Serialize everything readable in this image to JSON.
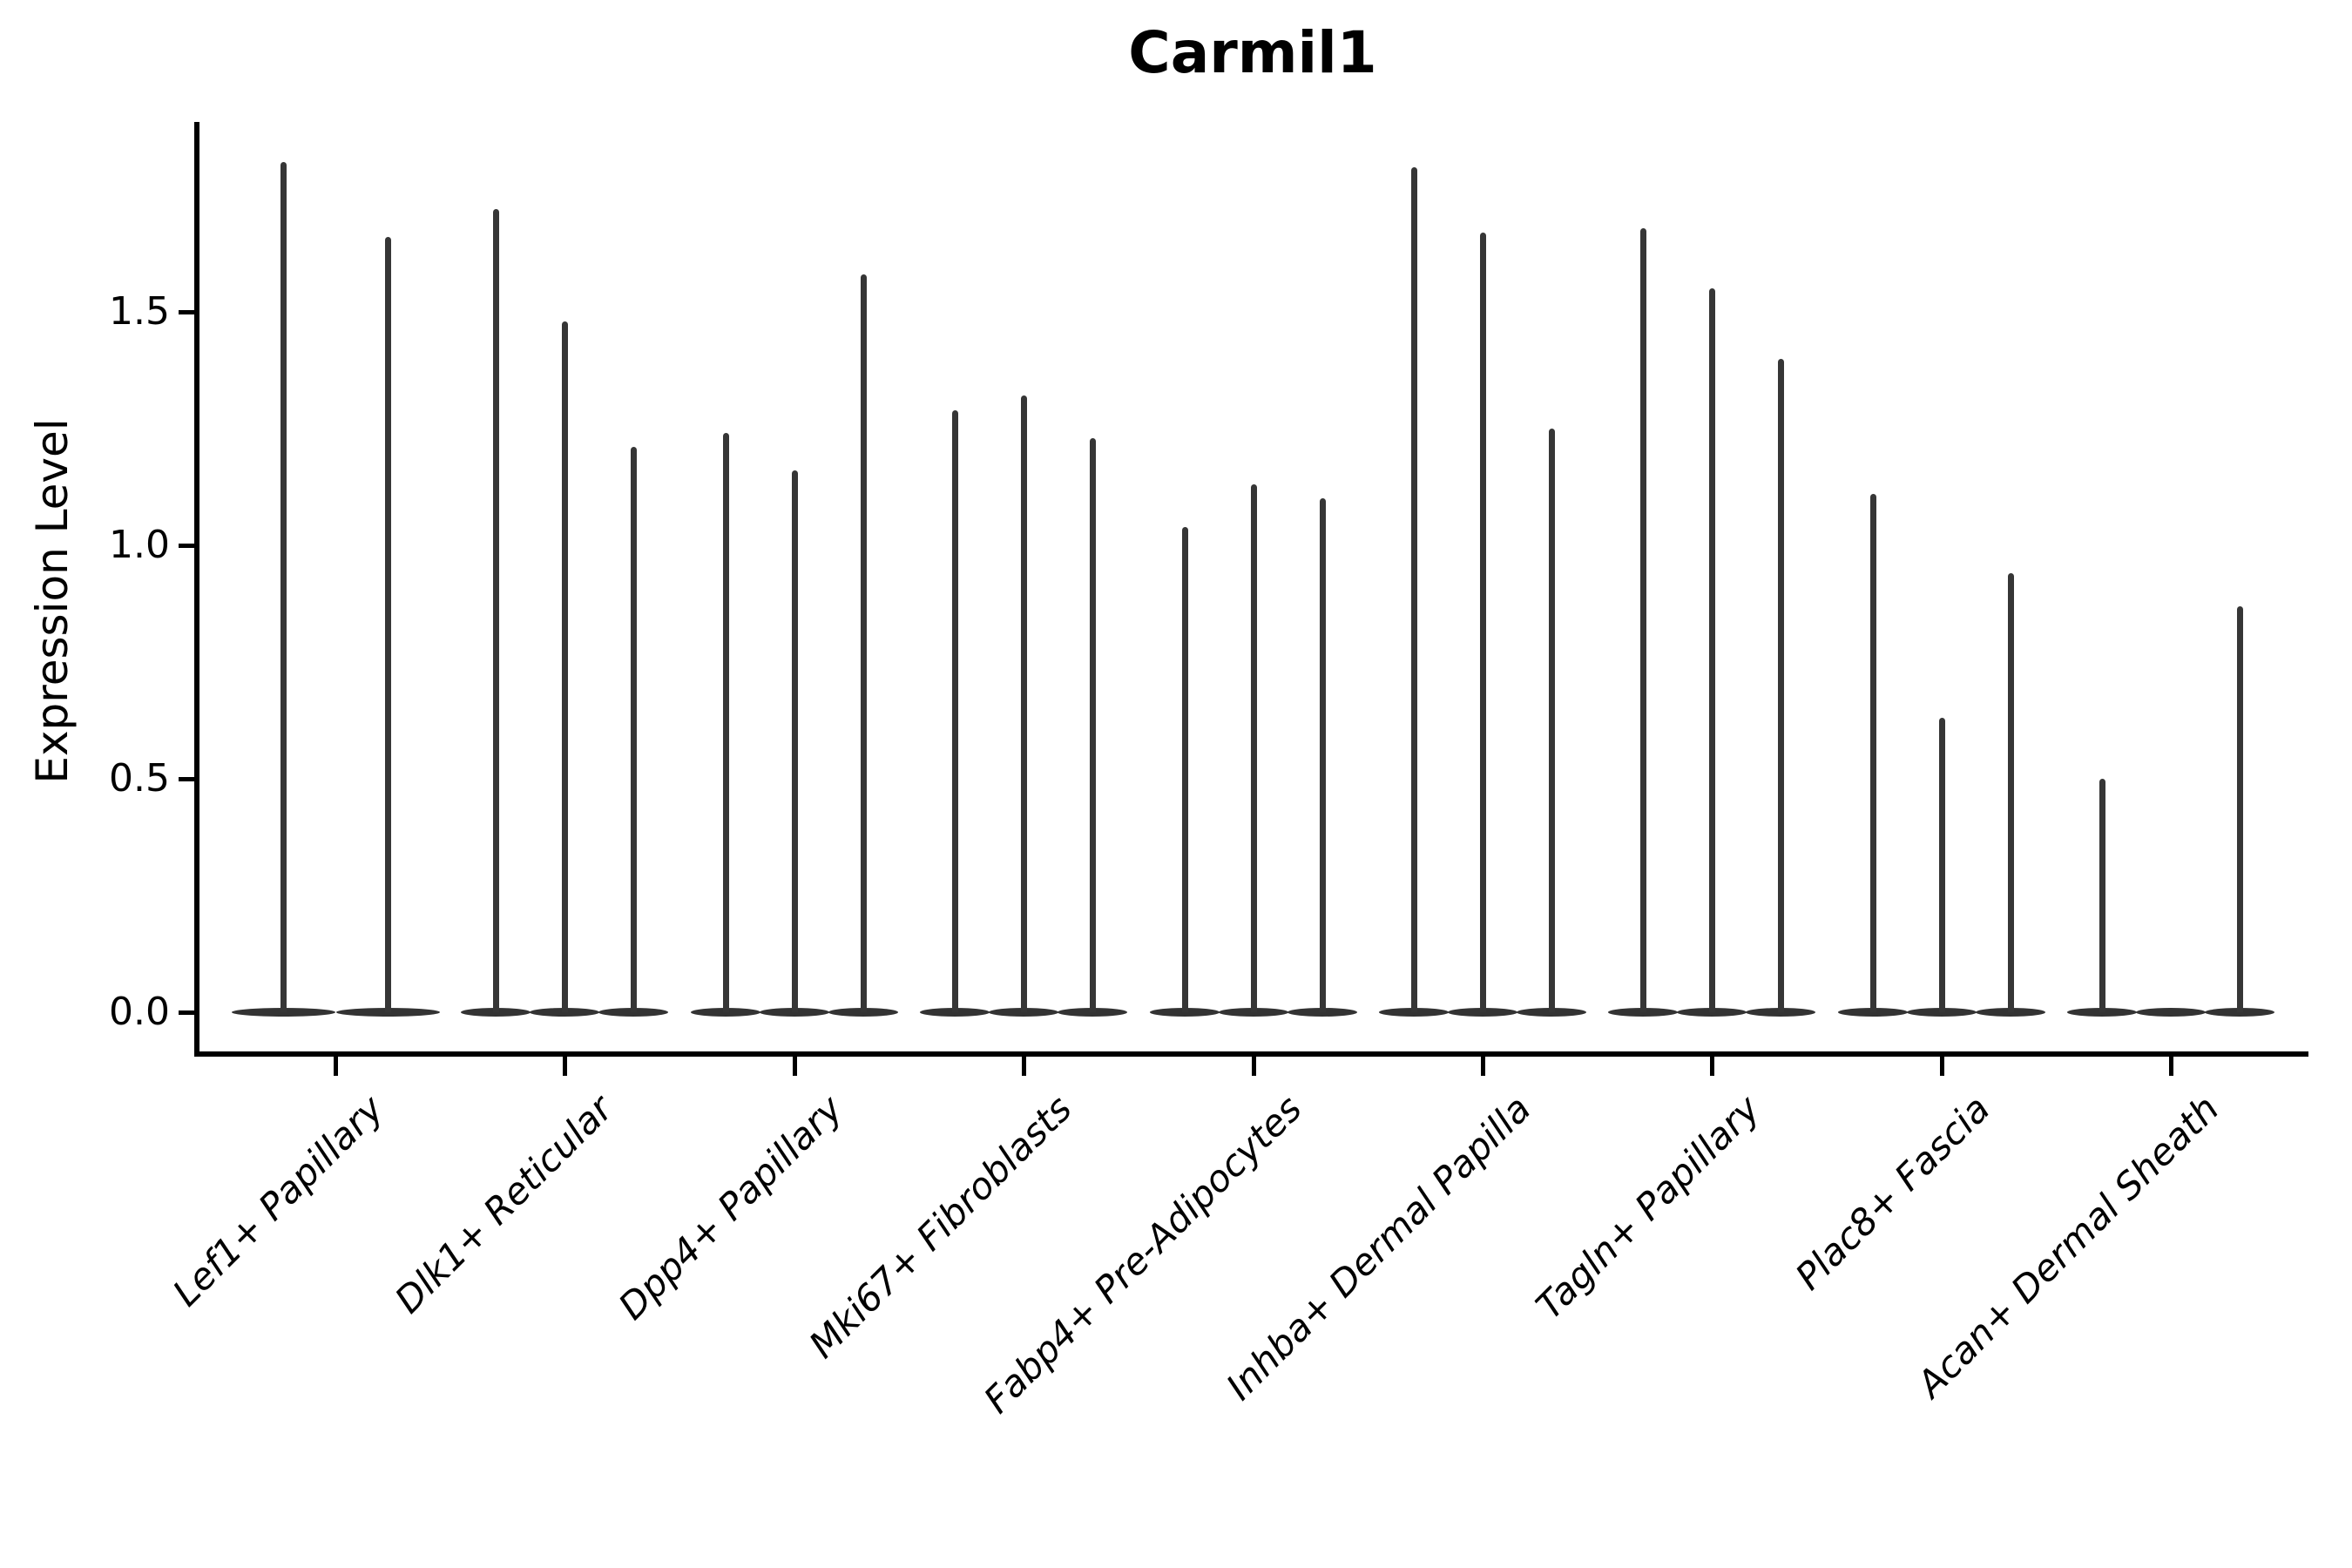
{
  "chart_data": {
    "type": "violin",
    "title": "Carmil1",
    "ylabel": "Expression Level",
    "xlabel": "",
    "yticks": [
      0.0,
      0.5,
      1.0,
      1.5
    ],
    "ylim": [
      0,
      1.9
    ],
    "grid": false,
    "legend": "none",
    "categories": [
      "Lef1+ Papillary",
      "Dlk1+ Reticular",
      "Dpp4+ Papillary",
      "Mki67+ Fibroblasts",
      "Fabp4+ Pre-Adipocytes",
      "Inhba+ Dermal Papilla",
      "Tagln+ Papillary",
      "Plac8+ Fascia",
      "Acan+ Dermal Sheath"
    ],
    "series": [
      {
        "category": "Lef1+ Papillary",
        "violin_max_values": [
          1.82,
          1.66
        ]
      },
      {
        "category": "Dlk1+ Reticular",
        "violin_max_values": [
          1.72,
          1.48,
          1.21
        ]
      },
      {
        "category": "Dpp4+ Papillary",
        "violin_max_values": [
          1.24,
          1.16,
          1.58
        ]
      },
      {
        "category": "Mki67+ Fibroblasts",
        "violin_max_values": [
          1.29,
          1.32,
          1.23
        ]
      },
      {
        "category": "Fabp4+ Pre-Adipocytes",
        "violin_max_values": [
          1.04,
          1.13,
          1.1
        ]
      },
      {
        "category": "Inhba+ Dermal Papilla",
        "violin_max_values": [
          1.81,
          1.67,
          1.25
        ]
      },
      {
        "category": "Tagln+ Papillary",
        "violin_max_values": [
          1.68,
          1.55,
          1.4
        ]
      },
      {
        "category": "Plac8+ Fascia",
        "violin_max_values": [
          1.11,
          0.63,
          0.94
        ]
      },
      {
        "category": "Acan+ Dermal Sheath",
        "violin_max_values": [
          0.5,
          null,
          0.87
        ]
      }
    ],
    "colors": {
      "violin": "#363636",
      "axis": "#000000",
      "background": "#ffffff"
    }
  }
}
